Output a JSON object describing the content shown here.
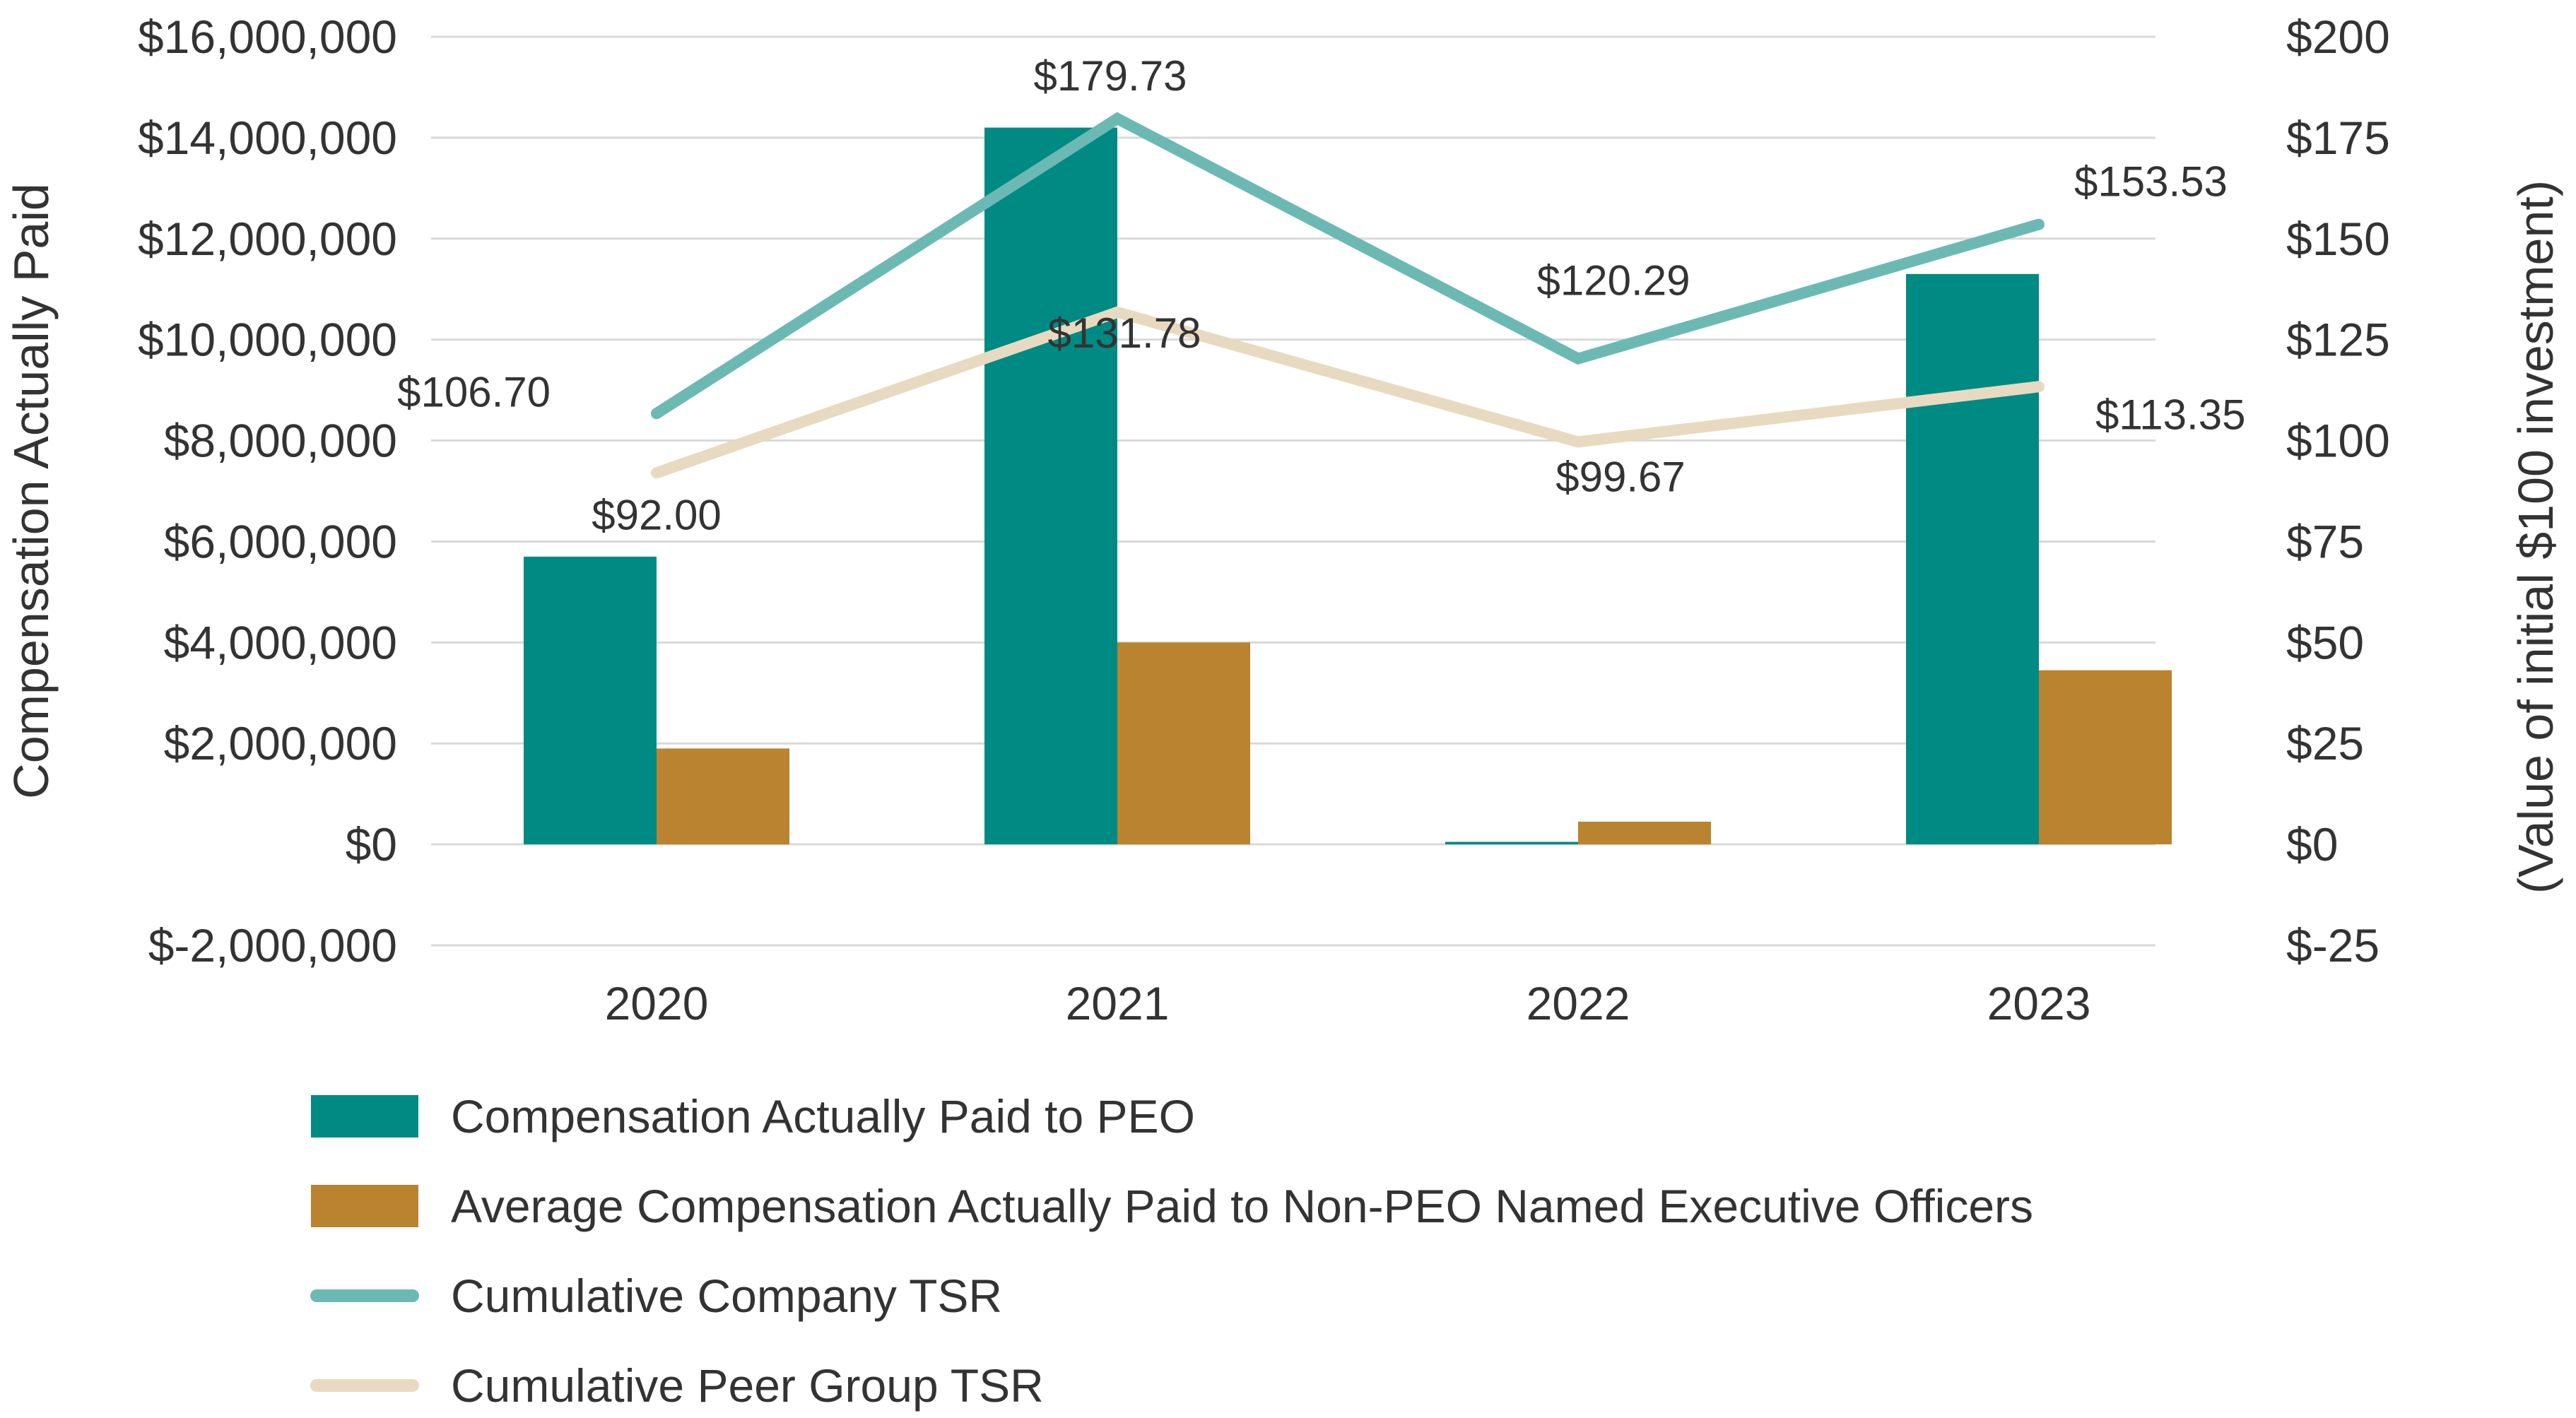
{
  "chart_data": {
    "type": "bar",
    "categories": [
      "2020",
      "2021",
      "2022",
      "2023"
    ],
    "y_left": {
      "label": "Compensation Actually Paid",
      "range": [
        -2000000,
        16000000
      ],
      "step": 2000000,
      "tick_labels": [
        "$-2,000,000",
        "$0",
        "$2,000,000",
        "$4,000,000",
        "$6,000,000",
        "$8,000,000",
        "$10,000,000",
        "$12,000,000",
        "$14,000,000",
        "$16,000,000"
      ]
    },
    "y_right": {
      "label": "(Value of initial $100 investment)",
      "range": [
        -25,
        200
      ],
      "step": 25,
      "tick_labels": [
        "$-25",
        "$0",
        "$25",
        "$50",
        "$75",
        "$100",
        "$125",
        "$150",
        "$175",
        "$200"
      ]
    },
    "bar_series": [
      {
        "name": "Compensation Actually Paid to PEO",
        "color": "#008a84",
        "values": [
          5700000,
          14200000,
          50000,
          11300000
        ]
      },
      {
        "name": "Average Compensation Actually Paid to Non-PEO Named Executive Officers",
        "color": "#b98330",
        "values": [
          1900000,
          4000000,
          450000,
          3450000
        ]
      }
    ],
    "line_series": [
      {
        "name": "Cumulative Company TSR",
        "color": "#6cb9b4",
        "values": [
          106.7,
          179.73,
          120.29,
          153.53
        ],
        "labels": [
          "$106.70",
          "$179.73",
          "$120.29",
          "$153.53"
        ]
      },
      {
        "name": "Cumulative Peer Group TSR",
        "color": "#e8dac0",
        "values": [
          92.0,
          131.78,
          99.67,
          113.35
        ],
        "labels": [
          "$92.00",
          "$131.78",
          "$99.67",
          "$113.35"
        ]
      }
    ],
    "grid": true,
    "legend_position": "bottom"
  }
}
